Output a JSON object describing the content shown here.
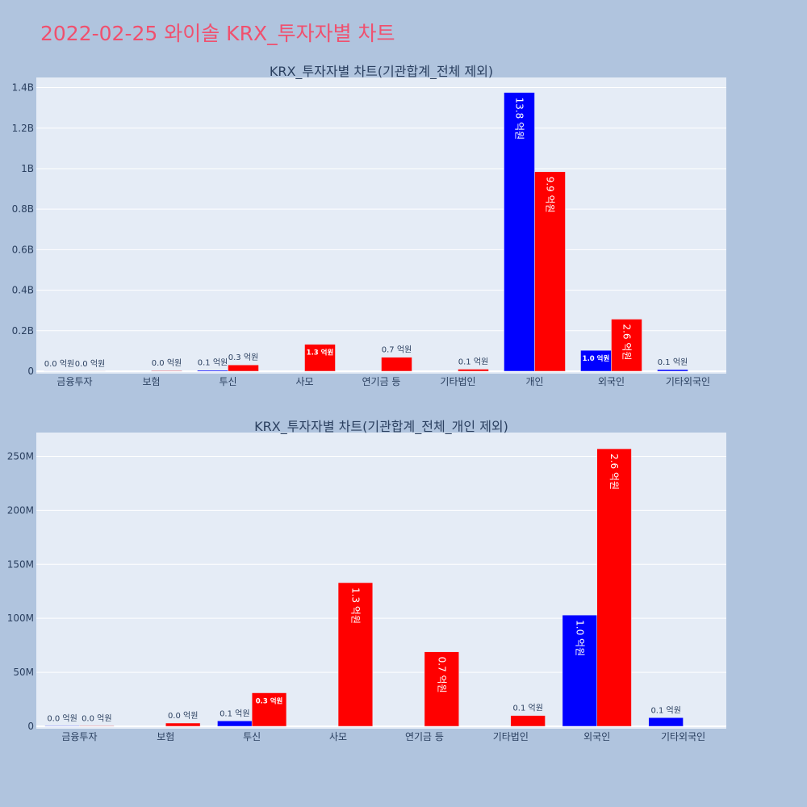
{
  "page": {
    "title": "2022-02-25 와이솔 KRX_투자자별 차트"
  },
  "colors": {
    "buy": "#0000ff",
    "sell": "#ff0000",
    "plot_bg": "#e5ecf6",
    "page_bg": "#b0c4de",
    "title": "#f0506e"
  },
  "chart_data": [
    {
      "type": "bar",
      "title": "KRX_투자자별 차트(기관합계_전체 제외)",
      "categories": [
        "금융투자",
        "보험",
        "투신",
        "사모",
        "연기금 등",
        "기타법인",
        "개인",
        "외국인",
        "기타외국인"
      ],
      "series": [
        {
          "values": [
            500000,
            0,
            5000000,
            0,
            0,
            0,
            1376000000,
            103000000,
            8000000
          ],
          "labels": [
            "0.0 억원",
            "",
            "0.1 억원",
            "",
            "",
            "",
            "13.8 억원",
            "1.0 억원",
            "0.1 억원"
          ]
        },
        {
          "values": [
            500000,
            3000000,
            31000000,
            133000000,
            69000000,
            10000000,
            985000000,
            257000000,
            0
          ],
          "labels": [
            "0.0 억원",
            "0.0 억원",
            "0.3 억원",
            "1.3 억원",
            "0.7 억원",
            "0.1 억원",
            "9.9 억원",
            "2.6 억원",
            ""
          ]
        }
      ],
      "ylim": [
        0,
        1450000000
      ],
      "yticks": [
        0,
        200000000,
        400000000,
        600000000,
        800000000,
        1000000000,
        1200000000,
        1400000000
      ],
      "yticklabels": [
        "0",
        "0.2B",
        "0.4B",
        "0.6B",
        "0.8B",
        "1B",
        "1.2B",
        "1.4B"
      ],
      "grid": true
    },
    {
      "type": "bar",
      "title": "KRX_투자자별 차트(기관합계_전체_개인 제외)",
      "categories": [
        "금융투자",
        "보험",
        "투신",
        "사모",
        "연기금 등",
        "기타법인",
        "외국인",
        "기타외국인"
      ],
      "series": [
        {
          "values": [
            500000,
            0,
            5000000,
            0,
            0,
            0,
            103000000,
            8000000
          ],
          "labels": [
            "0.0 억원",
            "",
            "0.1 억원",
            "",
            "",
            "",
            "1.0 억원",
            "0.1 억원"
          ]
        },
        {
          "values": [
            500000,
            3000000,
            31000000,
            133000000,
            69000000,
            10000000,
            257000000,
            0
          ],
          "labels": [
            "0.0 억원",
            "0.0 억원",
            "0.3 억원",
            "1.3 억원",
            "0.7 억원",
            "0.1 억원",
            "2.6 억원",
            ""
          ]
        }
      ],
      "ylim": [
        0,
        272000000
      ],
      "yticks": [
        0,
        50000000,
        100000000,
        150000000,
        200000000,
        250000000
      ],
      "yticklabels": [
        "0",
        "50M",
        "100M",
        "150M",
        "200M",
        "250M"
      ],
      "grid": true
    }
  ]
}
